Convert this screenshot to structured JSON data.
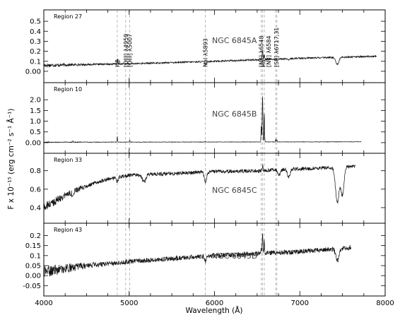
{
  "xaxis": {
    "label": "Wavelength (Å)",
    "range": [
      4000,
      8000
    ],
    "ticks": [
      4000,
      5000,
      6000,
      7000,
      8000
    ]
  },
  "ylabel": "F x 10⁻¹⁵ (erg cm⁻² s⁻¹ Å⁻¹)",
  "colors": {
    "spectrum": "#111111",
    "line_markers": "#aaaaaa",
    "frame": "#000000"
  },
  "line_markers_x": [
    4861,
    4959,
    5007,
    5893,
    6548,
    6563,
    6584,
    6717,
    6731
  ],
  "line_labels": [
    {
      "text": "Hβ",
      "x": 4861
    },
    {
      "text": "[OIII] λ4959",
      "x": 4959
    },
    {
      "text": "[OIII] λ5007",
      "x": 5007
    },
    {
      "text": "NaI λ5893",
      "x": 5893
    },
    {
      "text": "[NII] λ6548",
      "x": 6548
    },
    {
      "text": "Hα",
      "x": 6563
    },
    {
      "text": "[NII] λ6584",
      "x": 6584
    },
    {
      "text": "[SII] λ6717,31",
      "x": 6724
    }
  ],
  "chart_data": [
    {
      "type": "line",
      "region": "Region 27",
      "object": "NGC 6845A",
      "ylim": [
        -0.05,
        0.55
      ],
      "yticks": [
        0.0,
        0.1,
        0.2,
        0.3,
        0.4,
        0.5
      ],
      "x_extent": [
        4000,
        7900
      ],
      "continuum": [
        [
          4000,
          0.06
        ],
        [
          5000,
          0.075
        ],
        [
          6000,
          0.1
        ],
        [
          7000,
          0.13
        ],
        [
          7900,
          0.15
        ]
      ],
      "features": [
        {
          "x": 4861,
          "dy": 0.05,
          "w": 4
        },
        {
          "x": 6563,
          "dy": 0.09,
          "w": 5
        },
        {
          "x": 6584,
          "dy": 0.05,
          "w": 4
        },
        {
          "x": 5893,
          "dy": -0.025,
          "w": 10
        },
        {
          "x": 7440,
          "dy": -0.07,
          "w": 18
        },
        {
          "x": 6870,
          "dy": -0.015,
          "w": 12
        }
      ],
      "noise": 0.008
    },
    {
      "type": "line",
      "region": "Region 10",
      "object": "NGC 6845B",
      "ylim": [
        -0.2,
        2.5
      ],
      "yticks": [
        0.0,
        0.5,
        1.0,
        1.5,
        2.0
      ],
      "x_extent": [
        4000,
        7720
      ],
      "continuum": [
        [
          4000,
          0.02
        ],
        [
          8000,
          0.04
        ]
      ],
      "features": [
        {
          "x": 4861,
          "dy": 0.28,
          "w": 3
        },
        {
          "x": 5007,
          "dy": 0.1,
          "w": 3
        },
        {
          "x": 6548,
          "dy": 0.8,
          "w": 3
        },
        {
          "x": 6563,
          "dy": 2.2,
          "w": 4
        },
        {
          "x": 6584,
          "dy": 1.4,
          "w": 3
        },
        {
          "x": 6717,
          "dy": 0.12,
          "w": 3
        },
        {
          "x": 6731,
          "dy": 0.1,
          "w": 3
        },
        {
          "x": 4340,
          "dy": 0.06,
          "w": 3
        },
        {
          "x": 5893,
          "dy": 0.04,
          "w": 3
        }
      ],
      "noise": 0.01
    },
    {
      "type": "line",
      "region": "Region 33",
      "object": "NGC 6845C",
      "ylim": [
        0.3,
        0.92
      ],
      "yticks": [
        0.4,
        0.6,
        0.8
      ],
      "x_extent": [
        4000,
        7650
      ],
      "continuum": [
        [
          4000,
          0.4
        ],
        [
          4300,
          0.56
        ],
        [
          4700,
          0.7
        ],
        [
          5000,
          0.75
        ],
        [
          5500,
          0.77
        ],
        [
          6000,
          0.79
        ],
        [
          6500,
          0.8
        ],
        [
          7000,
          0.82
        ],
        [
          7500,
          0.84
        ],
        [
          7650,
          0.85
        ]
      ],
      "features": [
        {
          "x": 5175,
          "dy": -0.08,
          "w": 20
        },
        {
          "x": 5893,
          "dy": -0.1,
          "w": 14
        },
        {
          "x": 4861,
          "dy": -0.05,
          "w": 10
        },
        {
          "x": 4340,
          "dy": -0.05,
          "w": 10
        },
        {
          "x": 6563,
          "dy": 0.05,
          "w": 5
        },
        {
          "x": 6870,
          "dy": -0.08,
          "w": 16
        },
        {
          "x": 7440,
          "dy": -0.38,
          "w": 22
        },
        {
          "x": 7500,
          "dy": -0.3,
          "w": 18
        },
        {
          "x": 6760,
          "dy": -0.06,
          "w": 14
        }
      ],
      "noise": 0.02
    },
    {
      "type": "line",
      "region": "Region 43",
      "object": "NGC 6845D",
      "ylim": [
        -0.07,
        0.23
      ],
      "yticks": [
        -0.05,
        0.0,
        0.05,
        0.1,
        0.15,
        0.2
      ],
      "x_extent": [
        4000,
        7600
      ],
      "continuum": [
        [
          4000,
          0.02
        ],
        [
          4500,
          0.05
        ],
        [
          5000,
          0.07
        ],
        [
          6000,
          0.1
        ],
        [
          7000,
          0.12
        ],
        [
          7600,
          0.14
        ]
      ],
      "features": [
        {
          "x": 6563,
          "dy": 0.11,
          "w": 4
        },
        {
          "x": 6584,
          "dy": 0.06,
          "w": 4
        },
        {
          "x": 6548,
          "dy": 0.03,
          "w": 3
        },
        {
          "x": 5893,
          "dy": -0.025,
          "w": 10
        },
        {
          "x": 7440,
          "dy": -0.06,
          "w": 18
        }
      ],
      "noise": 0.012
    }
  ]
}
